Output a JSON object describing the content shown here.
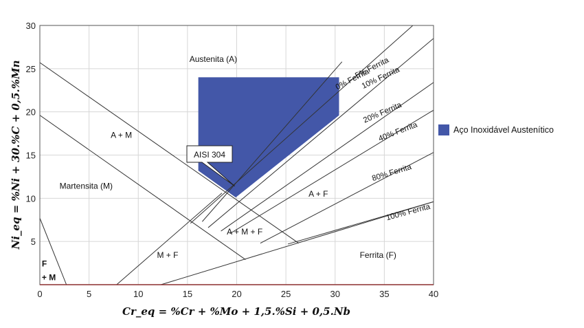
{
  "chart_data": {
    "type": "diagram",
    "xlabel": "Cr_eq = %Cr + %Mo + 1,5.%Si + 0,5.Nb",
    "ylabel": "Ni_eq = %Ni + 30.%C + 0,5.%Mn",
    "xlim": [
      0,
      40
    ],
    "ylim": [
      0,
      30
    ],
    "x_ticks": [
      0,
      5,
      10,
      15,
      20,
      25,
      30,
      35,
      40
    ],
    "y_ticks": [
      5,
      10,
      15,
      20,
      25,
      30
    ],
    "grid": true,
    "colors": {
      "austenitic_fill": "#4357a8",
      "boundary": "#333333",
      "grid": "#d6d6d6"
    },
    "boundaries": [
      {
        "name": "martensite-upper-line",
        "points": [
          [
            0,
            25.7
          ],
          [
            26.3,
            4.8
          ]
        ]
      },
      {
        "name": "martensite-lower-line",
        "points": [
          [
            0,
            19.6
          ],
          [
            20.9,
            2.9
          ]
        ]
      },
      {
        "name": "f-m-boundary-line",
        "points": [
          [
            0,
            7.7
          ],
          [
            2.7,
            0
          ]
        ]
      },
      {
        "name": "m-f-lower-line",
        "points": [
          [
            7.8,
            0
          ],
          [
            18.5,
            10.6
          ]
        ]
      },
      {
        "name": "m-f-base-line",
        "points": [
          [
            12.3,
            0
          ],
          [
            40,
            9.6
          ]
        ]
      }
    ],
    "ferrite_lines": [
      {
        "label": "0% Ferrita",
        "points": [
          [
            16.5,
            7.3
          ],
          [
            30.7,
            25.8
          ]
        ]
      },
      {
        "label": "5% Ferrita",
        "points": [
          [
            15.3,
            7.1
          ],
          [
            37.9,
            30
          ]
        ]
      },
      {
        "label": "10% Ferrita",
        "points": [
          [
            17.1,
            6.6
          ],
          [
            40,
            28.5
          ]
        ]
      },
      {
        "label": "20% Ferrita",
        "points": [
          [
            18.4,
            6.2
          ],
          [
            40,
            23.4
          ]
        ]
      },
      {
        "label": "40% Ferrita",
        "points": [
          [
            19.3,
            5.9
          ],
          [
            40,
            20.2
          ]
        ]
      },
      {
        "label": "80% Ferrita",
        "points": [
          [
            22.4,
            4.8
          ],
          [
            40,
            15.3
          ]
        ]
      },
      {
        "label": "100% Ferrita",
        "points": [
          [
            25.2,
            4.7
          ],
          [
            40,
            9.6
          ]
        ]
      }
    ],
    "series": [
      {
        "name": "Aço Inoxidável Austenítico",
        "polygon": [
          [
            16.1,
            24
          ],
          [
            30.4,
            24
          ],
          [
            30.4,
            19.6
          ],
          [
            19.9,
            10.1
          ],
          [
            16.1,
            13.2
          ]
        ]
      }
    ],
    "regions": [
      {
        "label": "Austenita (A)",
        "x": 15.2,
        "y": 25.8
      },
      {
        "label": "A + M",
        "x": 7.2,
        "y": 17
      },
      {
        "label": "Martensita (M)",
        "x": 2,
        "y": 11.1
      },
      {
        "label": "A + F",
        "x": 27.3,
        "y": 10.2
      },
      {
        "label": "A + M + F",
        "x": 19,
        "y": 5.8
      },
      {
        "label": "M + F",
        "x": 11.9,
        "y": 3.1
      },
      {
        "label": "Ferrita (F)",
        "x": 32.5,
        "y": 3.1
      },
      {
        "label": "F",
        "x": 0.2,
        "y": 2.1
      },
      {
        "label": "+ M",
        "x": 0.2,
        "y": 0.5
      }
    ],
    "annotations": [
      {
        "label": "AISI 304",
        "target": [
          19.8,
          11.4
        ]
      }
    ],
    "legend": {
      "placement": "right",
      "entries": [
        "Aço Inoxidável Austenítico"
      ]
    }
  }
}
